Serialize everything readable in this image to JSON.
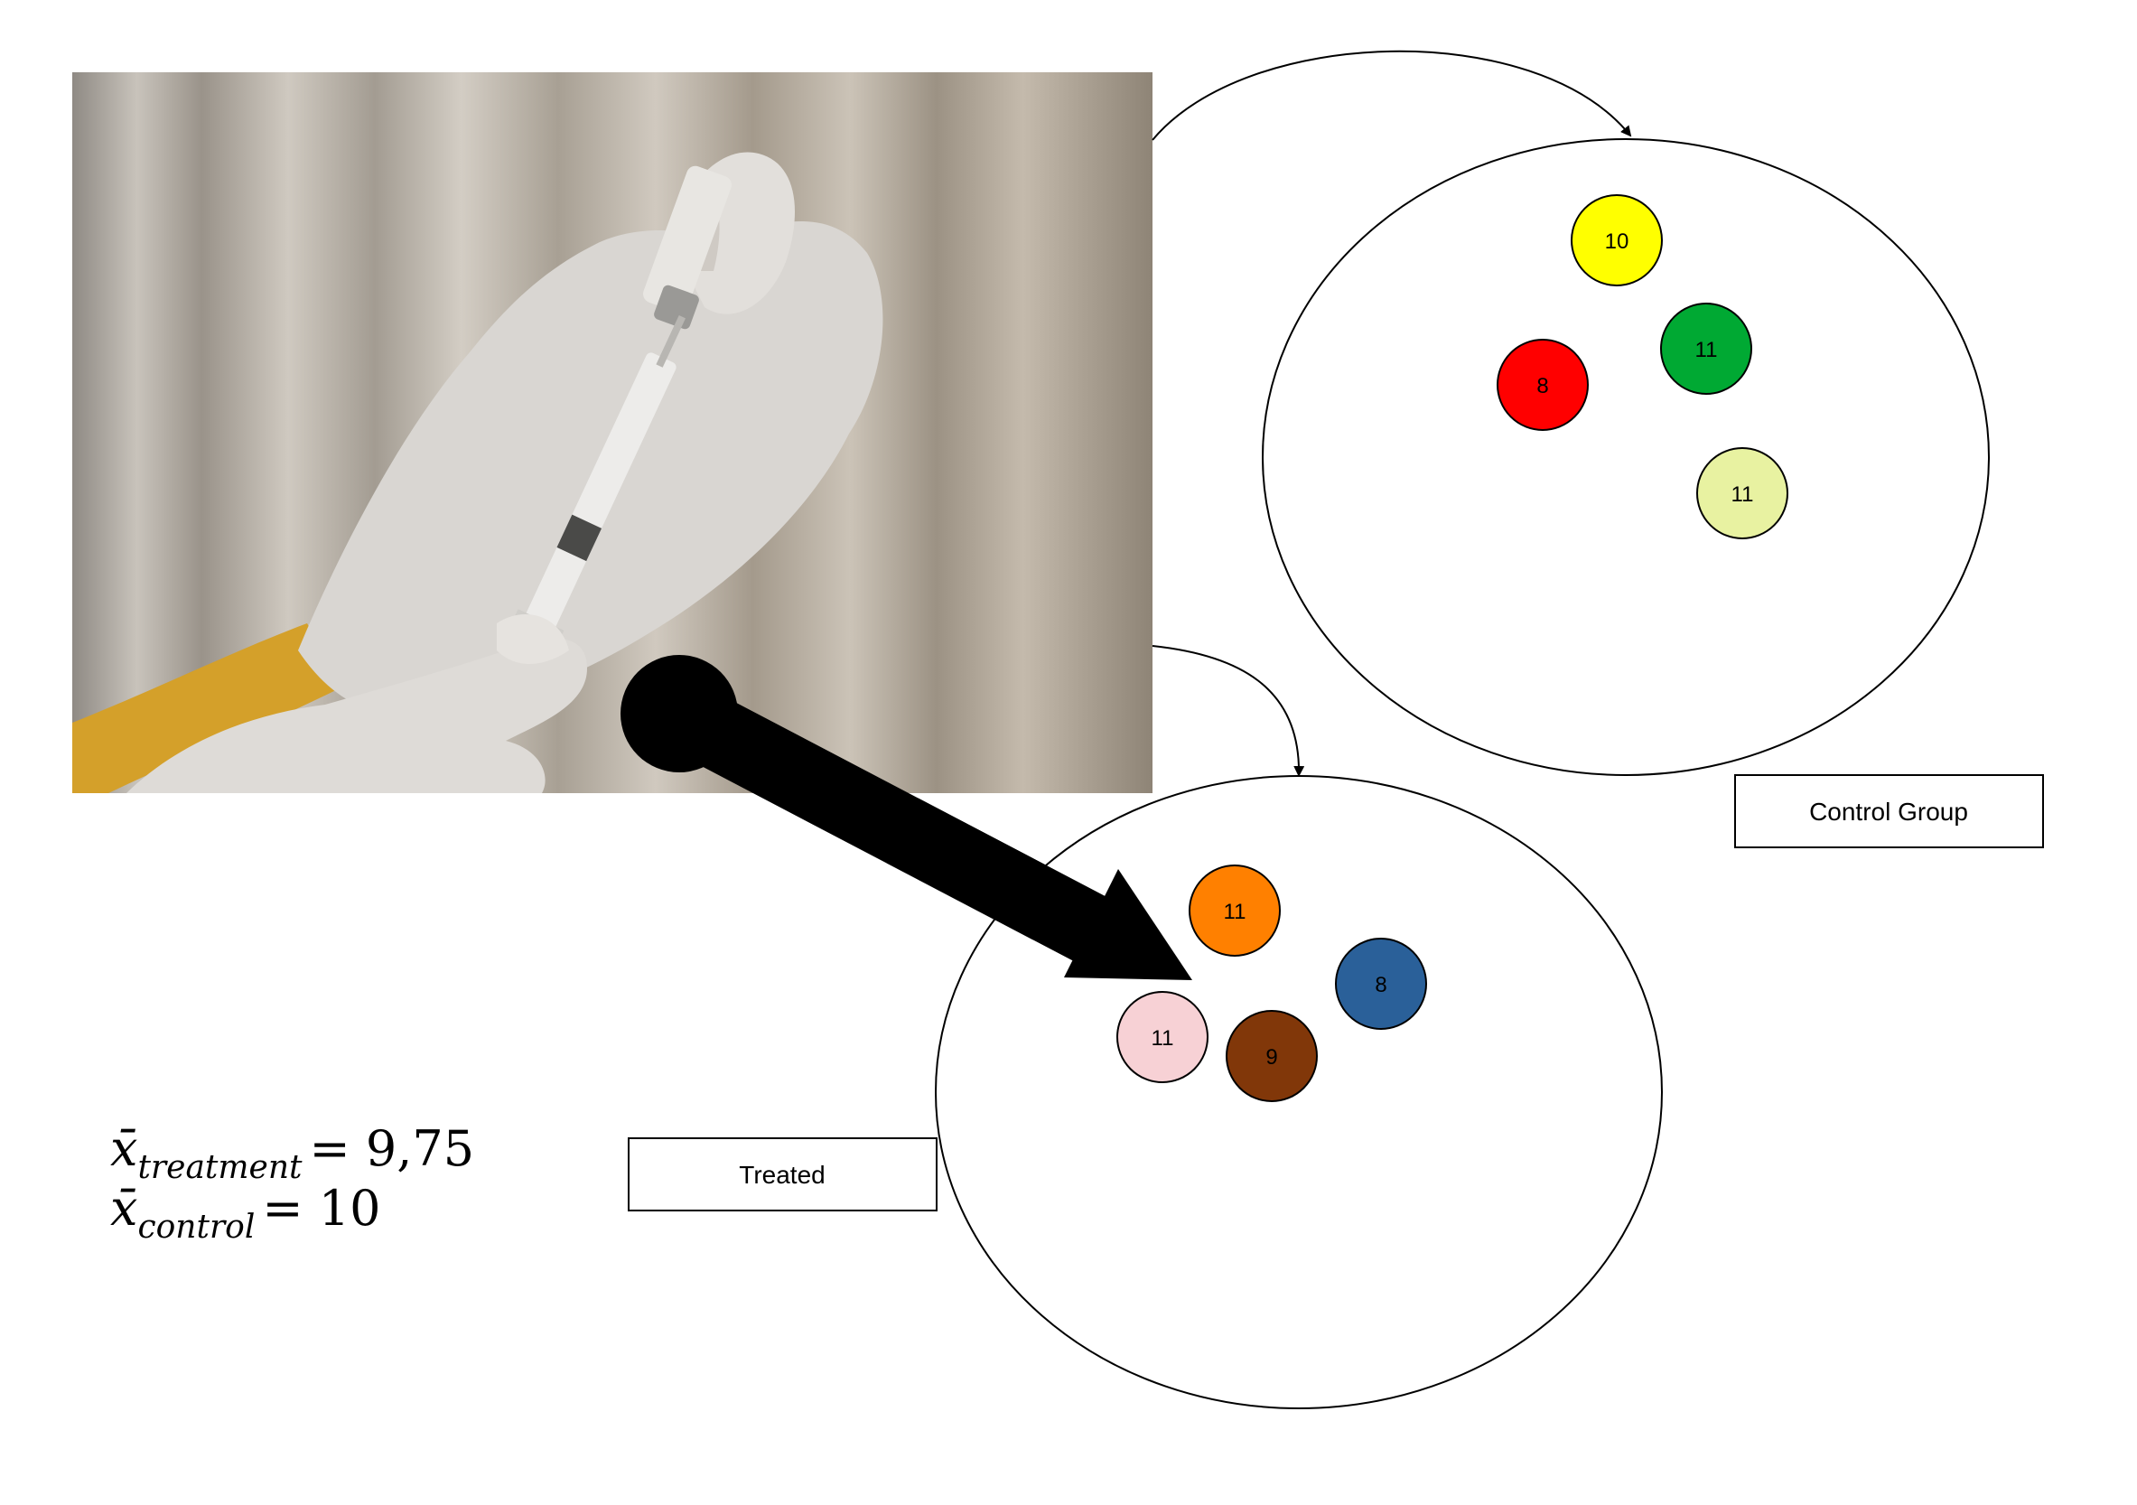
{
  "labels": {
    "control_group": "Control Group",
    "treated": "Treated"
  },
  "formula": {
    "symbol": "x̄",
    "treatment_subscript": "treatment",
    "treatment_value": "= 9,75",
    "control_subscript": "control",
    "control_value": "= 10"
  },
  "control_circles": [
    {
      "value": "10",
      "color": "#ffff00"
    },
    {
      "value": "11",
      "color": "#00a933"
    },
    {
      "value": "8",
      "color": "#ff0000"
    },
    {
      "value": "11",
      "color": "#e8f2a1"
    }
  ],
  "treated_circles": [
    {
      "value": "11",
      "color": "#ff8000"
    },
    {
      "value": "8",
      "color": "#2a6099"
    },
    {
      "value": "11",
      "color": "#f7d1d5"
    },
    {
      "value": "9",
      "color": "#813709"
    }
  ],
  "photo": {
    "icon": "syringe-vaccine-photo-icon"
  }
}
